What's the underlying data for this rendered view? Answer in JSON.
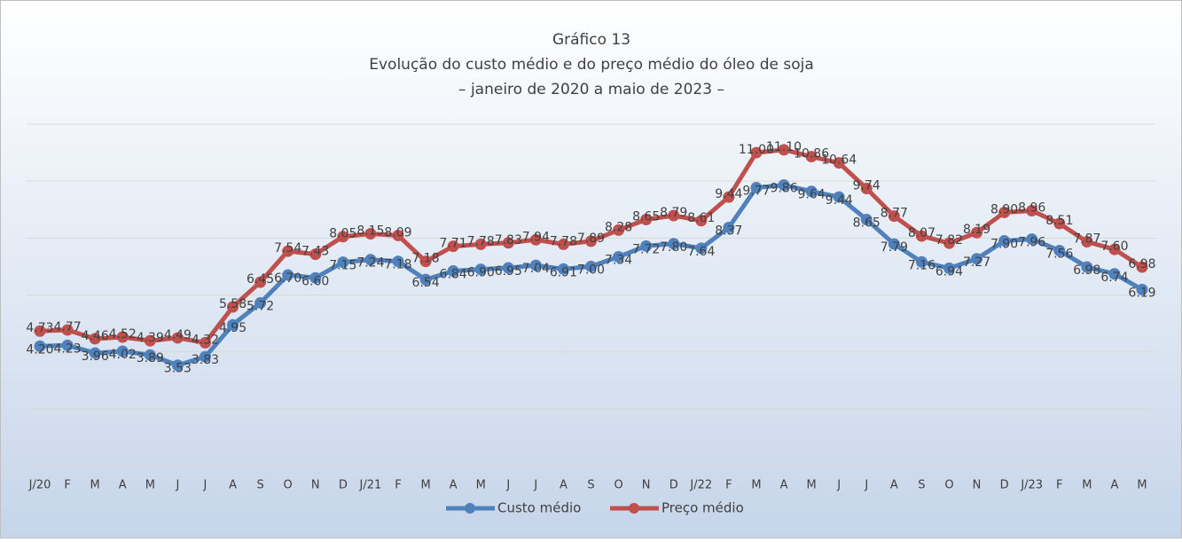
{
  "chart_data": {
    "type": "line",
    "title": "Gráfico 13",
    "subtitle": [
      "Evolução do custo médio e do preço médio do óleo de soja",
      "– janeiro de 2020 a maio de 2023 –"
    ],
    "categories": [
      "J/20",
      "F",
      "M",
      "A",
      "M",
      "J",
      "J",
      "A",
      "S",
      "O",
      "N",
      "D",
      "J/21",
      "F",
      "M",
      "A",
      "M",
      "J",
      "J",
      "A",
      "S",
      "O",
      "N",
      "D",
      "J/22",
      "F",
      "M",
      "A",
      "M",
      "J",
      "J",
      "A",
      "S",
      "O",
      "N",
      "D",
      "J/23",
      "F",
      "M",
      "A",
      "M"
    ],
    "series": [
      {
        "name": "Custo médio",
        "color": "#4f81bd",
        "values": [
          4.2,
          4.23,
          3.96,
          4.02,
          3.89,
          3.53,
          3.83,
          4.95,
          5.72,
          6.7,
          6.6,
          7.15,
          7.24,
          7.18,
          6.54,
          6.84,
          6.9,
          6.95,
          7.04,
          6.91,
          7.0,
          7.34,
          7.72,
          7.8,
          7.64,
          8.37,
          9.77,
          9.86,
          9.64,
          9.44,
          8.65,
          7.79,
          7.16,
          6.94,
          7.27,
          7.9,
          7.96,
          7.56,
          6.98,
          6.74,
          6.19
        ],
        "value_labels": [
          "4.20",
          "4.23",
          "3.96",
          "4.02",
          "3.89",
          "3.53",
          "3.83",
          "4.95",
          "5.72",
          "6.70",
          "6.60",
          "7.15",
          "7.24",
          "7.18",
          "6.54",
          "6.84",
          "6.90",
          "6.95",
          "7.04",
          "6.91",
          "7.00",
          "7.34",
          "7.72",
          "7.80",
          "7.64",
          "8.37",
          "9.77",
          "9.86",
          "9.64",
          "9.44",
          "8.65",
          "7.79",
          "7.16",
          "6.94",
          "7.27",
          "7.90",
          "7.96",
          "7.56",
          "6.98",
          "6.74",
          "6.19"
        ]
      },
      {
        "name": "Preço médio",
        "color": "#c0504d",
        "values": [
          4.73,
          4.77,
          4.46,
          4.52,
          4.39,
          4.49,
          4.32,
          5.58,
          6.45,
          7.54,
          7.43,
          8.05,
          8.15,
          8.09,
          7.18,
          7.71,
          7.78,
          7.83,
          7.94,
          7.78,
          7.89,
          8.28,
          8.65,
          8.79,
          8.61,
          9.44,
          11.0,
          11.1,
          10.86,
          10.64,
          9.74,
          8.77,
          8.07,
          7.82,
          8.19,
          8.9,
          8.96,
          8.51,
          7.87,
          7.6,
          6.98
        ],
        "value_labels": [
          "4.73",
          "4.77",
          "4.46",
          "4.52",
          "4.39",
          "4.49",
          "4.32",
          "5.58",
          "6.45",
          "7.54",
          "7.43",
          "8.05",
          "8.15",
          "8.09",
          "7.18",
          "7.71",
          "7.78",
          "7.83",
          "7.94",
          "7.78",
          "7.89",
          "8.28",
          "8.65",
          "8.79",
          "8.61",
          "9.44",
          "11.00",
          "11.10",
          "10.86",
          "10.64",
          "9.74",
          "8.77",
          "8.07",
          "7.82",
          "8.19",
          "8.90",
          "8.96",
          "8.51",
          "7.87",
          "7.60",
          "6.98"
        ]
      }
    ],
    "ylim": [
      0,
      12
    ],
    "yticks": [
      0,
      2,
      4,
      6,
      8,
      10,
      12
    ],
    "grid": true,
    "legend": "bottom"
  }
}
